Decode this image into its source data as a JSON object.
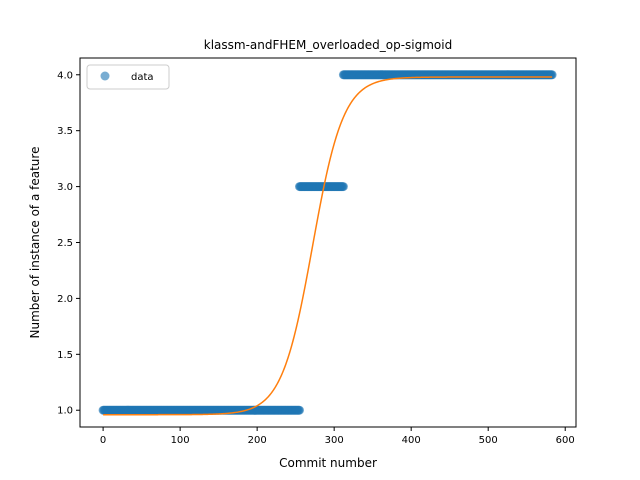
{
  "chart_data": {
    "type": "scatter",
    "title": "klassm-andFHEM_overloaded_op-sigmoid",
    "xlabel": "Commit number",
    "ylabel": "Number of instance of a feature",
    "xlim": [
      -30,
      614
    ],
    "ylim": [
      0.85,
      4.15
    ],
    "xticks": [
      0,
      100,
      200,
      300,
      400,
      500,
      600
    ],
    "yticks": [
      1.0,
      1.5,
      2.0,
      2.5,
      3.0,
      3.5,
      4.0
    ],
    "xtick_labels": [
      "0",
      "100",
      "200",
      "300",
      "400",
      "500",
      "600"
    ],
    "ytick_labels": [
      "1.0",
      "1.5",
      "2.0",
      "2.5",
      "3.0",
      "3.5",
      "4.0"
    ],
    "grid": false,
    "legend": {
      "position": "top-left",
      "entries": [
        "data"
      ]
    },
    "series": [
      {
        "name": "data",
        "kind": "scatter",
        "color": "#1f77b4",
        "segments": [
          {
            "x_start": 0,
            "x_end": 255,
            "y": 1.0
          },
          {
            "x_start": 255,
            "x_end": 312,
            "y": 3.0
          },
          {
            "x_start": 312,
            "x_end": 583,
            "y": 4.0
          }
        ]
      },
      {
        "kind": "line",
        "color": "#ff7f0e",
        "fit": {
          "function": "sigmoid",
          "L": 3.02,
          "k": 0.05,
          "x0": 272,
          "b": 0.96
        },
        "x_range": [
          0,
          583
        ]
      }
    ]
  }
}
